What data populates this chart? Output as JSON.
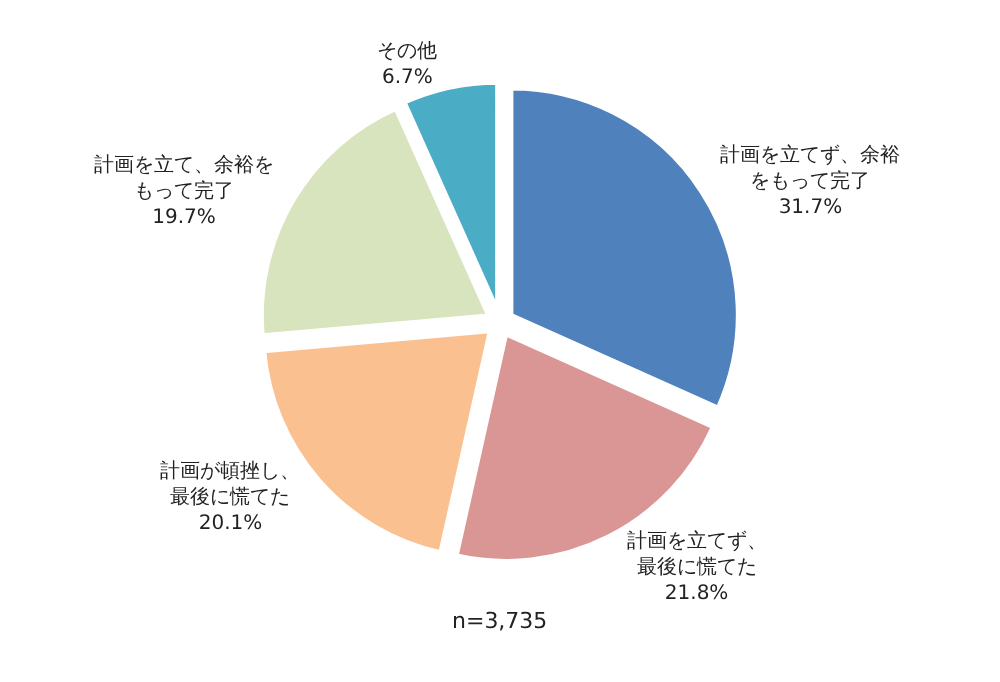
{
  "chart_data": {
    "type": "pie",
    "categories": [
      "計画を立てず、余裕をもって完了",
      "計画を立てず、最後に慌てた",
      "計画が頓挫し、最後に慌てた",
      "計画を立て、余裕をもって完了",
      "その他"
    ],
    "values": [
      31.7,
      21.8,
      20.1,
      19.7,
      6.7
    ],
    "colors": [
      "#4f81bd",
      "#d99694",
      "#fac090",
      "#d7e4bd",
      "#4bacc6"
    ],
    "value_labels": [
      "31.7%",
      "21.8%",
      "20.1%",
      "19.7%",
      "6.7%"
    ],
    "annotations": [
      "n=3,735"
    ],
    "legend": false
  }
}
